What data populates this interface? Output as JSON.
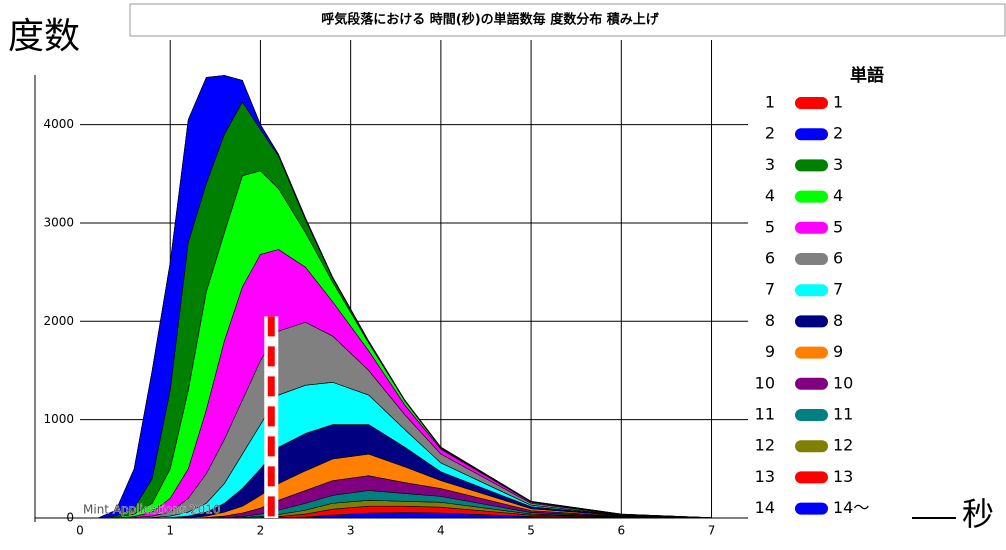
{
  "chart_data": {
    "type": "stacked_area",
    "title": "呼気段落における 時間(秒)の単語数毎 度数分布 積み上げ",
    "y_label": "度数",
    "x_label": "秒",
    "legend_title": "単語",
    "legend_index": [
      "1",
      "2",
      "3",
      "4",
      "5",
      "6",
      "7",
      "8",
      "9",
      "10",
      "11",
      "12",
      "13",
      "14"
    ],
    "watermark": "Mint Applications 2010",
    "xlim": [
      0,
      9.2
    ],
    "ylim": [
      0,
      4860
    ],
    "xticks": [
      0,
      1,
      2,
      3,
      4,
      5,
      6,
      7
    ],
    "yticks": [
      0,
      1000,
      2000,
      3000,
      4000
    ],
    "grid": true,
    "cursor": {
      "x": 2.12,
      "y": 2050
    },
    "x": [
      0.2,
      0.4,
      0.6,
      0.8,
      1.0,
      1.2,
      1.4,
      1.6,
      1.8,
      2.0,
      2.2,
      2.5,
      2.8,
      3.2,
      3.6,
      4.0,
      5.0,
      6.0,
      7.0
    ],
    "series": [
      {
        "name": "1",
        "color": "#ff0000",
        "values": [
          0,
          0,
          0,
          0,
          0,
          0,
          0,
          0,
          0,
          0,
          0,
          0,
          0,
          0,
          0,
          0,
          0,
          0,
          0
        ]
      },
      {
        "name": "2",
        "color": "#0000ff",
        "values": [
          0,
          60,
          400,
          1100,
          1300,
          1250,
          1080,
          600,
          220,
          50,
          20,
          20,
          10,
          10,
          5,
          5,
          2,
          1,
          0
        ]
      },
      {
        "name": "3",
        "color": "#008000",
        "values": [
          0,
          15,
          60,
          250,
          800,
          1500,
          1100,
          1000,
          750,
          420,
          330,
          130,
          40,
          10,
          5,
          5,
          3,
          1,
          0
        ]
      },
      {
        "name": "4",
        "color": "#00ff00",
        "values": [
          0,
          5,
          25,
          90,
          300,
          800,
          1200,
          1100,
          1130,
          850,
          620,
          350,
          200,
          80,
          40,
          10,
          5,
          2,
          0
        ]
      },
      {
        "name": "5",
        "color": "#ff00ff",
        "values": [
          0,
          0,
          10,
          40,
          140,
          300,
          650,
          1000,
          1150,
          1080,
          830,
          560,
          350,
          200,
          100,
          50,
          10,
          3,
          1
        ]
      },
      {
        "name": "6",
        "color": "#808080",
        "values": [
          0,
          0,
          5,
          15,
          40,
          140,
          300,
          450,
          550,
          650,
          650,
          640,
          470,
          250,
          150,
          90,
          20,
          3,
          0
        ]
      },
      {
        "name": "7",
        "color": "#00ffff",
        "values": [
          0,
          0,
          0,
          5,
          15,
          40,
          90,
          200,
          350,
          450,
          530,
          490,
          430,
          300,
          180,
          90,
          15,
          3,
          0
        ]
      },
      {
        "name": "8",
        "color": "#000080",
        "values": [
          0,
          0,
          0,
          0,
          5,
          15,
          40,
          90,
          180,
          270,
          370,
          380,
          350,
          300,
          200,
          90,
          20,
          4,
          1
        ]
      },
      {
        "name": "9",
        "color": "#ff8000",
        "values": [
          0,
          0,
          0,
          0,
          0,
          5,
          15,
          40,
          70,
          130,
          170,
          200,
          220,
          220,
          160,
          80,
          20,
          4,
          0
        ]
      },
      {
        "name": "10",
        "color": "#800080",
        "values": [
          0,
          0,
          0,
          0,
          0,
          0,
          5,
          15,
          35,
          60,
          100,
          130,
          150,
          150,
          110,
          80,
          20,
          4,
          0
        ]
      },
      {
        "name": "11",
        "color": "#008080",
        "values": [
          0,
          0,
          0,
          0,
          0,
          0,
          0,
          5,
          10,
          25,
          45,
          70,
          80,
          100,
          80,
          60,
          15,
          4,
          0
        ]
      },
      {
        "name": "12",
        "color": "#808000",
        "values": [
          0,
          0,
          0,
          0,
          0,
          0,
          0,
          0,
          5,
          10,
          20,
          40,
          60,
          60,
          50,
          50,
          10,
          3,
          1
        ]
      },
      {
        "name": "13",
        "color": "#ff0000",
        "values": [
          0,
          0,
          0,
          0,
          0,
          0,
          0,
          0,
          0,
          5,
          12,
          30,
          60,
          70,
          65,
          60,
          15,
          4,
          0
        ]
      },
      {
        "name": "14〜",
        "color": "#0000ff",
        "values": [
          0,
          0,
          0,
          0,
          0,
          0,
          0,
          0,
          0,
          0,
          3,
          10,
          30,
          50,
          55,
          50,
          15,
          4,
          0
        ]
      }
    ]
  }
}
